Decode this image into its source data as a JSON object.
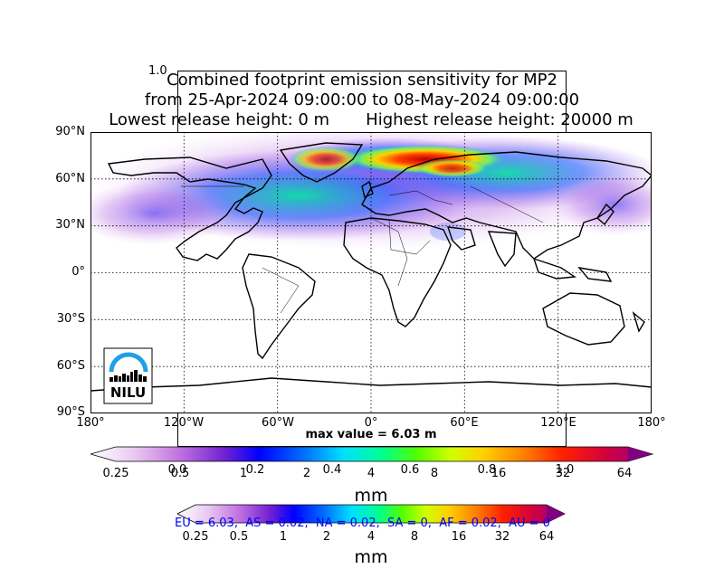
{
  "title": {
    "line1": "Combined footprint emission sensitivity for MP2",
    "line2": "from 25-Apr-2024 09:00:00 to 08-May-2024 09:00:00",
    "line3_left": "Lowest release height: 0 m",
    "line3_right": "Highest release height: 20000 m"
  },
  "ghost_axis": {
    "top_tick": "1.0",
    "x_ticks": [
      "0.0",
      "0.2",
      "0.4",
      "0.6",
      "0.8",
      "1.0"
    ]
  },
  "map": {
    "lat_labels": [
      "90°N",
      "60°N",
      "30°N",
      "0°",
      "30°S",
      "60°S",
      "90°S"
    ],
    "lon_labels": [
      "180°",
      "120°W",
      "60°W",
      "0°",
      "60°E",
      "120°E",
      "180°"
    ],
    "max_value_label": "max value = 6.03 m",
    "logo_text": "NILU",
    "gridline_style": "dotted"
  },
  "colorbar_main": {
    "tick_labels": [
      "0.25",
      "0.5",
      "1",
      "2",
      "4",
      "8",
      "16",
      "32",
      "64"
    ],
    "unit_label": "mm",
    "colors": [
      "#ffffff",
      "#e8c8f0",
      "#c070e0",
      "#7020d0",
      "#0000ff",
      "#0070ff",
      "#00e0ff",
      "#00ff90",
      "#50ff00",
      "#d0ff00",
      "#ffd000",
      "#ff8000",
      "#ff2000",
      "#d00040",
      "#900090"
    ]
  },
  "colorbar_secondary": {
    "tick_labels": [
      "0.25",
      "0.5",
      "1",
      "2",
      "4",
      "8",
      "16",
      "32",
      "64"
    ],
    "unit_label": "mm",
    "region_text": "EU = 6.03,  AS = 0.02,  NA = 0.02,  SA = 0,  AF = 0.02,  AU = 0"
  }
}
